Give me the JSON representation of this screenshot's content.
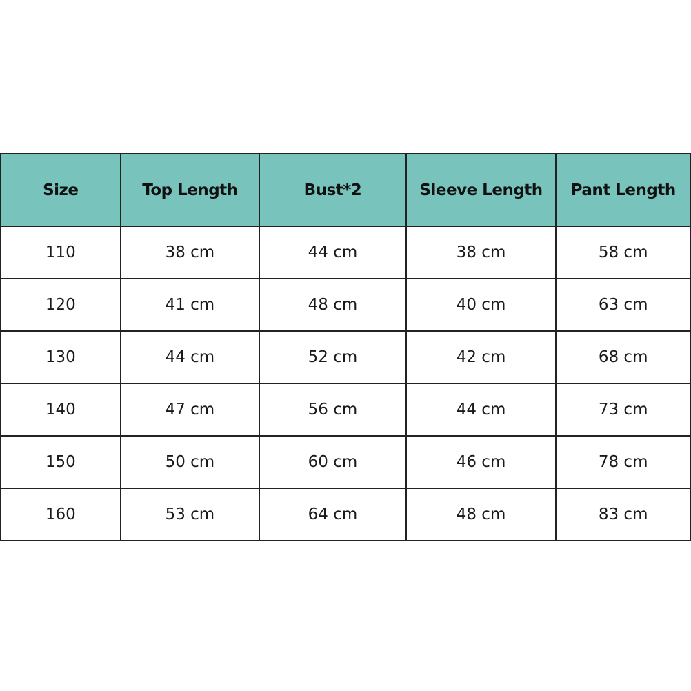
{
  "header_color": "#79c3bd",
  "columns": [
    "Size",
    "Top Length",
    "Bust*2",
    "Sleeve Length",
    "Pant Length"
  ],
  "rows": [
    [
      "110",
      "38 cm",
      "44 cm",
      "38 cm",
      "58 cm"
    ],
    [
      "120",
      "41 cm",
      "48 cm",
      "40 cm",
      "63 cm"
    ],
    [
      "130",
      "44 cm",
      "52 cm",
      "42 cm",
      "68 cm"
    ],
    [
      "140",
      "47 cm",
      "56 cm",
      "44 cm",
      "73 cm"
    ],
    [
      "150",
      "50 cm",
      "60 cm",
      "46 cm",
      "78 cm"
    ],
    [
      "160",
      "53 cm",
      "64 cm",
      "48 cm",
      "83 cm"
    ]
  ]
}
